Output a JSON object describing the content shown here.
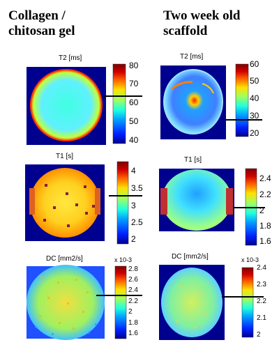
{
  "headings": {
    "left": "Collagen /\nchitosan gel",
    "right": "Two week old\nscaffold"
  },
  "colormap": [
    "#00008f",
    "#0020ff",
    "#00a0ff",
    "#20ffe0",
    "#a0ff60",
    "#ffe000",
    "#ff6000",
    "#d00000",
    "#800000"
  ],
  "panels": {
    "gel_t2": {
      "label": "T2 [ms]",
      "ticks": [
        "80",
        "70",
        "60",
        "50",
        "40"
      ]
    },
    "scaffold_t2": {
      "label": "T2 [ms]",
      "ticks": [
        "60",
        "50",
        "40",
        "30",
        "20"
      ]
    },
    "gel_t1": {
      "label": "T1  [s]",
      "ticks": [
        "4",
        "3.5",
        "3",
        "2.5",
        "2"
      ]
    },
    "scaffold_t1": {
      "label": "T1  [s]",
      "ticks": [
        "2.4",
        "2.2",
        "2",
        "1.8",
        "1.6"
      ]
    },
    "gel_dc": {
      "label": "DC [mm2/s]",
      "scale": "x 10-3",
      "ticks": [
        "2.8",
        "2.6",
        "2.4",
        "2.2",
        "2",
        "1.8",
        "1.6"
      ]
    },
    "scaffold_dc": {
      "label": "DC [mm2/s]",
      "scale": "x 10-3",
      "ticks": [
        "2.4",
        "2.3",
        "2.2",
        "2.1",
        "2"
      ]
    }
  }
}
